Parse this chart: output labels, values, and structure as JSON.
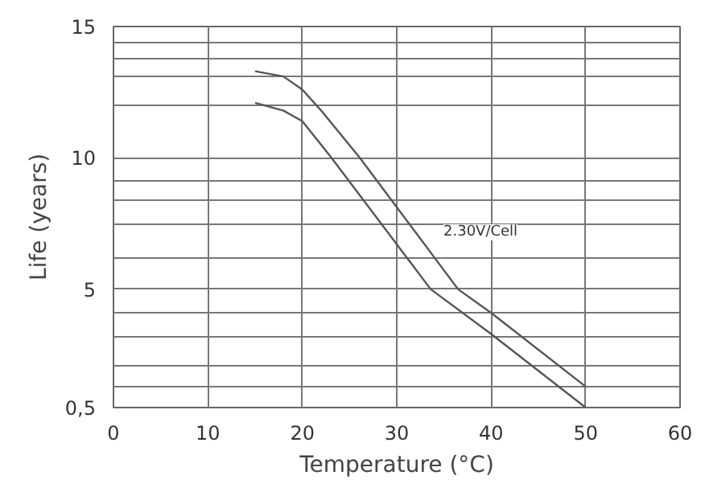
{
  "chart_data": {
    "type": "line",
    "xlabel": "Temperature (°C)",
    "ylabel": "Life (years)",
    "xlim": [
      0,
      60
    ],
    "xticks": [
      0,
      10,
      20,
      30,
      40,
      50,
      60
    ],
    "ylim": [
      0.5,
      15
    ],
    "yticks": [
      {
        "value": 0.5,
        "label": "0,5"
      },
      {
        "value": 1.3,
        "label": null
      },
      {
        "value": 2.1,
        "label": null
      },
      {
        "value": 3.2,
        "label": null
      },
      {
        "value": 4.1,
        "label": null
      },
      5,
      {
        "value": 6.2,
        "label": null
      },
      {
        "value": 7.5,
        "label": null
      },
      {
        "value": 8.4,
        "label": null
      },
      {
        "value": 9.1,
        "label": null
      },
      10,
      {
        "value": 12,
        "label": null
      },
      {
        "value": 13.1,
        "label": null
      },
      {
        "value": 13.8,
        "label": null
      },
      {
        "value": 14.4,
        "label": null
      },
      15
    ],
    "grid": true,
    "marker": "none",
    "line_style": "solid",
    "series": [
      {
        "color": "#555555",
        "x": [
          15,
          18,
          20,
          22,
          26.1,
          36.5,
          40,
          50
        ],
        "values": [
          13.3,
          13.1,
          12.6,
          11.8,
          10,
          5,
          4.1,
          1.3
        ]
      },
      {
        "color": "#555555",
        "x": [
          15,
          18,
          20,
          23.1,
          33.6,
          40,
          50
        ],
        "values": [
          12.1,
          11.8,
          11.4,
          10,
          5,
          3.3,
          0.5
        ]
      }
    ],
    "annotations": [
      "2.30V/Cell"
    ]
  }
}
